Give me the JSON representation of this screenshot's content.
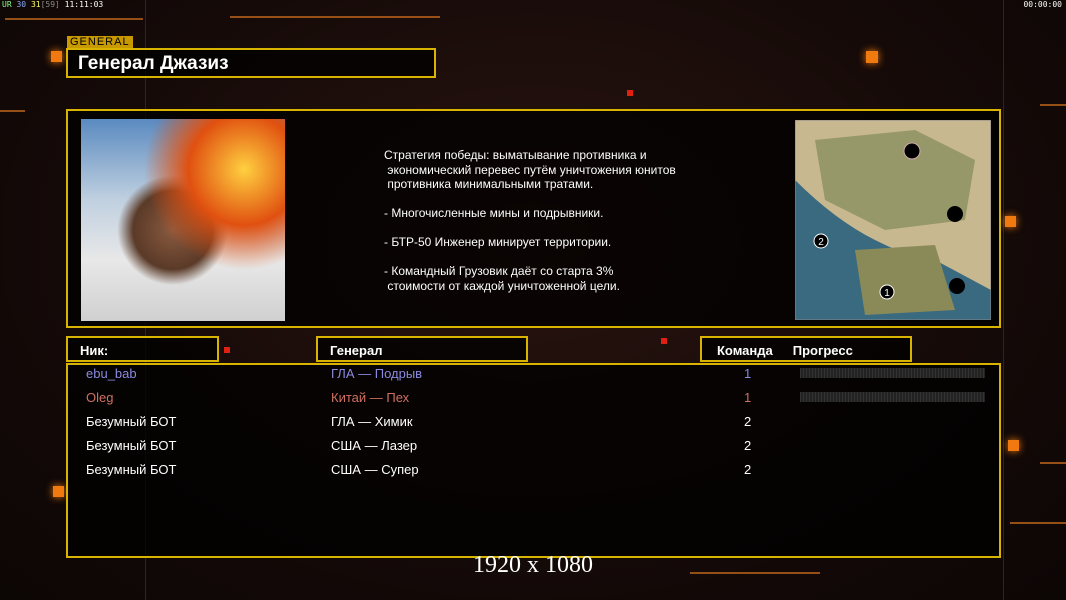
{
  "hud": {
    "prefix": "UR",
    "a": "30",
    "b": "31",
    "c": "[59]",
    "time": "11:11:03",
    "clock": "00:00:00"
  },
  "general": {
    "label": "GENERAL",
    "title": "Генерал Джазиз"
  },
  "description": "Стратегия победы: выматывание противника и\n экономический перевес путём уничтожения юнитов\n противника минимальными тратами.\n\n- Многочисленные мины и подрывники.\n\n- БТР-50 Инженер минирует территории.\n\n- Командный Грузовик даёт со старта 3%\n стоимости от каждой уничтоженной цели.",
  "map": {
    "markers": [
      "1",
      "2"
    ]
  },
  "table": {
    "headers": {
      "nick": "Ник:",
      "general": "Генерал",
      "team": "Команда",
      "progress": "Прогресс"
    },
    "rows": [
      {
        "nick": "ebu_bab",
        "general": "ГЛА — Подрыв",
        "team": "1",
        "color": "#8a8ae0",
        "progress": 0
      },
      {
        "nick": "Oleg",
        "general": "Китай — Пех",
        "team": "1",
        "color": "#d07060",
        "progress": 0
      },
      {
        "nick": "Безумный БОТ",
        "general": "ГЛА — Химик",
        "team": "2",
        "color": "#ffffff"
      },
      {
        "nick": "Безумный БОТ",
        "general": "США — Лазер",
        "team": "2",
        "color": "#ffffff"
      },
      {
        "nick": "Безумный БОТ",
        "general": "США — Супер",
        "team": "2",
        "color": "#ffffff"
      }
    ]
  },
  "footer": "1920 x 1080"
}
